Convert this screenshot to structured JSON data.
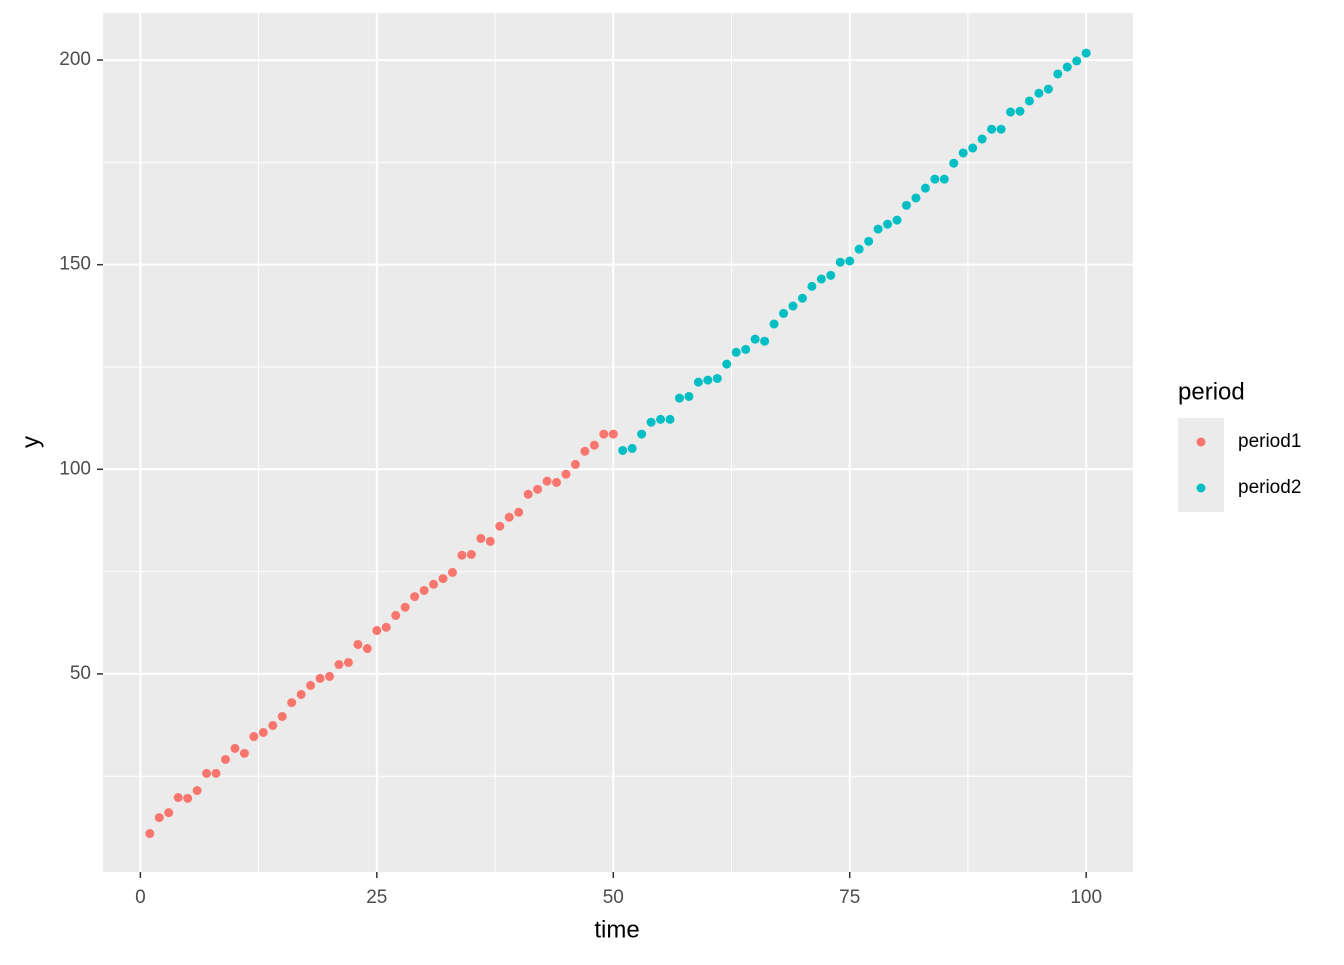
{
  "chart_data": {
    "type": "scatter",
    "x_label": "time",
    "y_label": "y",
    "legend_title": "period",
    "legend_position": "right",
    "xlim": [
      -3.95,
      104.95
    ],
    "ylim": [
      1.6,
      211.5
    ],
    "xticks": [
      0,
      25,
      50,
      75,
      100
    ],
    "yticks": [
      50,
      100,
      150,
      200
    ],
    "minor_xticks": [
      12.5,
      37.5,
      62.5,
      87.5
    ],
    "minor_yticks": [
      25,
      75,
      125,
      175
    ],
    "grid": true,
    "series": [
      {
        "name": "period1",
        "color": "#F8766D",
        "x": [
          1,
          2,
          3,
          4,
          5,
          6,
          7,
          8,
          9,
          10,
          11,
          12,
          13,
          14,
          15,
          16,
          17,
          18,
          19,
          20,
          21,
          22,
          23,
          24,
          25,
          26,
          27,
          28,
          29,
          30,
          31,
          32,
          33,
          34,
          35,
          36,
          37,
          38,
          39,
          40,
          41,
          42,
          43,
          44,
          45,
          46,
          47,
          48,
          49,
          50
        ],
        "values": [
          11.0,
          14.9,
          16.1,
          19.8,
          19.6,
          21.5,
          25.7,
          25.7,
          29.1,
          31.8,
          30.6,
          34.7,
          35.7,
          37.4,
          39.6,
          43.0,
          45.0,
          47.2,
          48.9,
          49.4,
          52.3,
          52.8,
          57.2,
          56.2,
          60.6,
          61.4,
          64.3,
          66.3,
          68.9,
          70.4,
          71.9,
          73.3,
          74.8,
          79.0,
          79.2,
          83.1,
          82.4,
          86.1,
          88.3,
          89.5,
          93.9,
          95.1,
          97.1,
          96.8,
          98.8,
          101.2,
          104.4,
          105.9,
          108.6,
          108.6
        ]
      },
      {
        "name": "period2",
        "color": "#00BFC4",
        "x": [
          51,
          52,
          53,
          54,
          55,
          56,
          57,
          58,
          59,
          60,
          61,
          62,
          63,
          64,
          65,
          66,
          67,
          68,
          69,
          70,
          71,
          72,
          73,
          74,
          75,
          76,
          77,
          78,
          79,
          80,
          81,
          82,
          83,
          84,
          85,
          86,
          87,
          88,
          89,
          90,
          91,
          92,
          93,
          94,
          95,
          96,
          97,
          98,
          99,
          100
        ],
        "values": [
          104.6,
          105.1,
          108.6,
          111.5,
          112.2,
          112.2,
          117.4,
          117.8,
          121.3,
          121.8,
          122.2,
          125.7,
          128.6,
          129.3,
          131.8,
          131.3,
          135.5,
          138.1,
          139.9,
          141.8,
          144.7,
          146.5,
          147.4,
          150.6,
          150.9,
          153.8,
          155.7,
          158.7,
          159.9,
          160.9,
          164.5,
          166.3,
          168.7,
          170.9,
          170.9,
          174.8,
          177.3,
          178.5,
          180.7,
          183.1,
          183.1,
          187.3,
          187.5,
          190.0,
          191.9,
          192.9,
          196.6,
          198.3,
          199.8,
          201.7
        ]
      }
    ]
  }
}
